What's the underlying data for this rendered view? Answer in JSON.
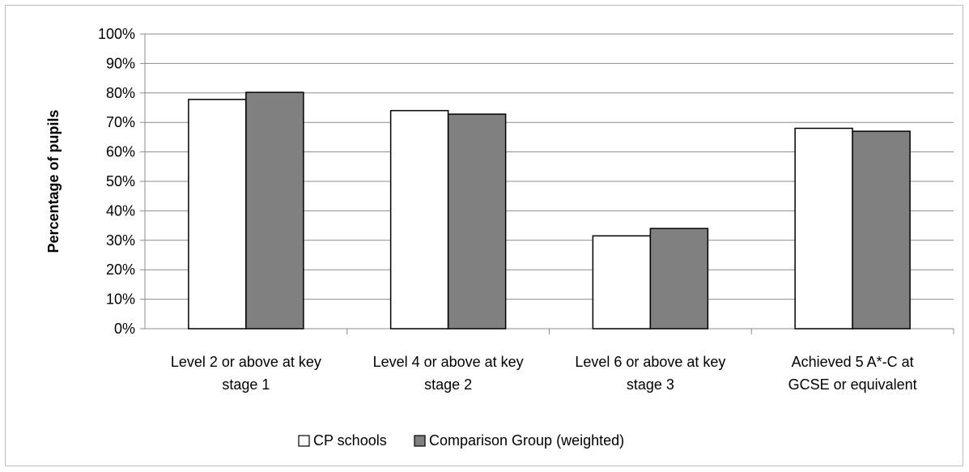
{
  "chart_data": {
    "type": "bar",
    "title": "",
    "xlabel": "",
    "ylabel": "Percentage of pupils",
    "ylim": [
      0,
      100
    ],
    "yticks": [
      "0%",
      "10%",
      "20%",
      "30%",
      "40%",
      "50%",
      "60%",
      "70%",
      "80%",
      "90%",
      "100%"
    ],
    "categories": [
      [
        "Level 2 or above at key",
        "stage 1"
      ],
      [
        "Level 4 or above at key",
        "stage 2"
      ],
      [
        "Level 6 or above at key",
        "stage 3"
      ],
      [
        "Achieved 5 A*-C at",
        "GCSE or equivalent"
      ]
    ],
    "series": [
      {
        "name": "CP schools",
        "color": "#ffffff",
        "values": [
          77.8,
          74,
          31.5,
          68
        ]
      },
      {
        "name": "Comparison Group (weighted)",
        "color": "#808080",
        "values": [
          80.2,
          72.8,
          34,
          67
        ]
      }
    ],
    "grid": true,
    "legend": "bottom"
  }
}
